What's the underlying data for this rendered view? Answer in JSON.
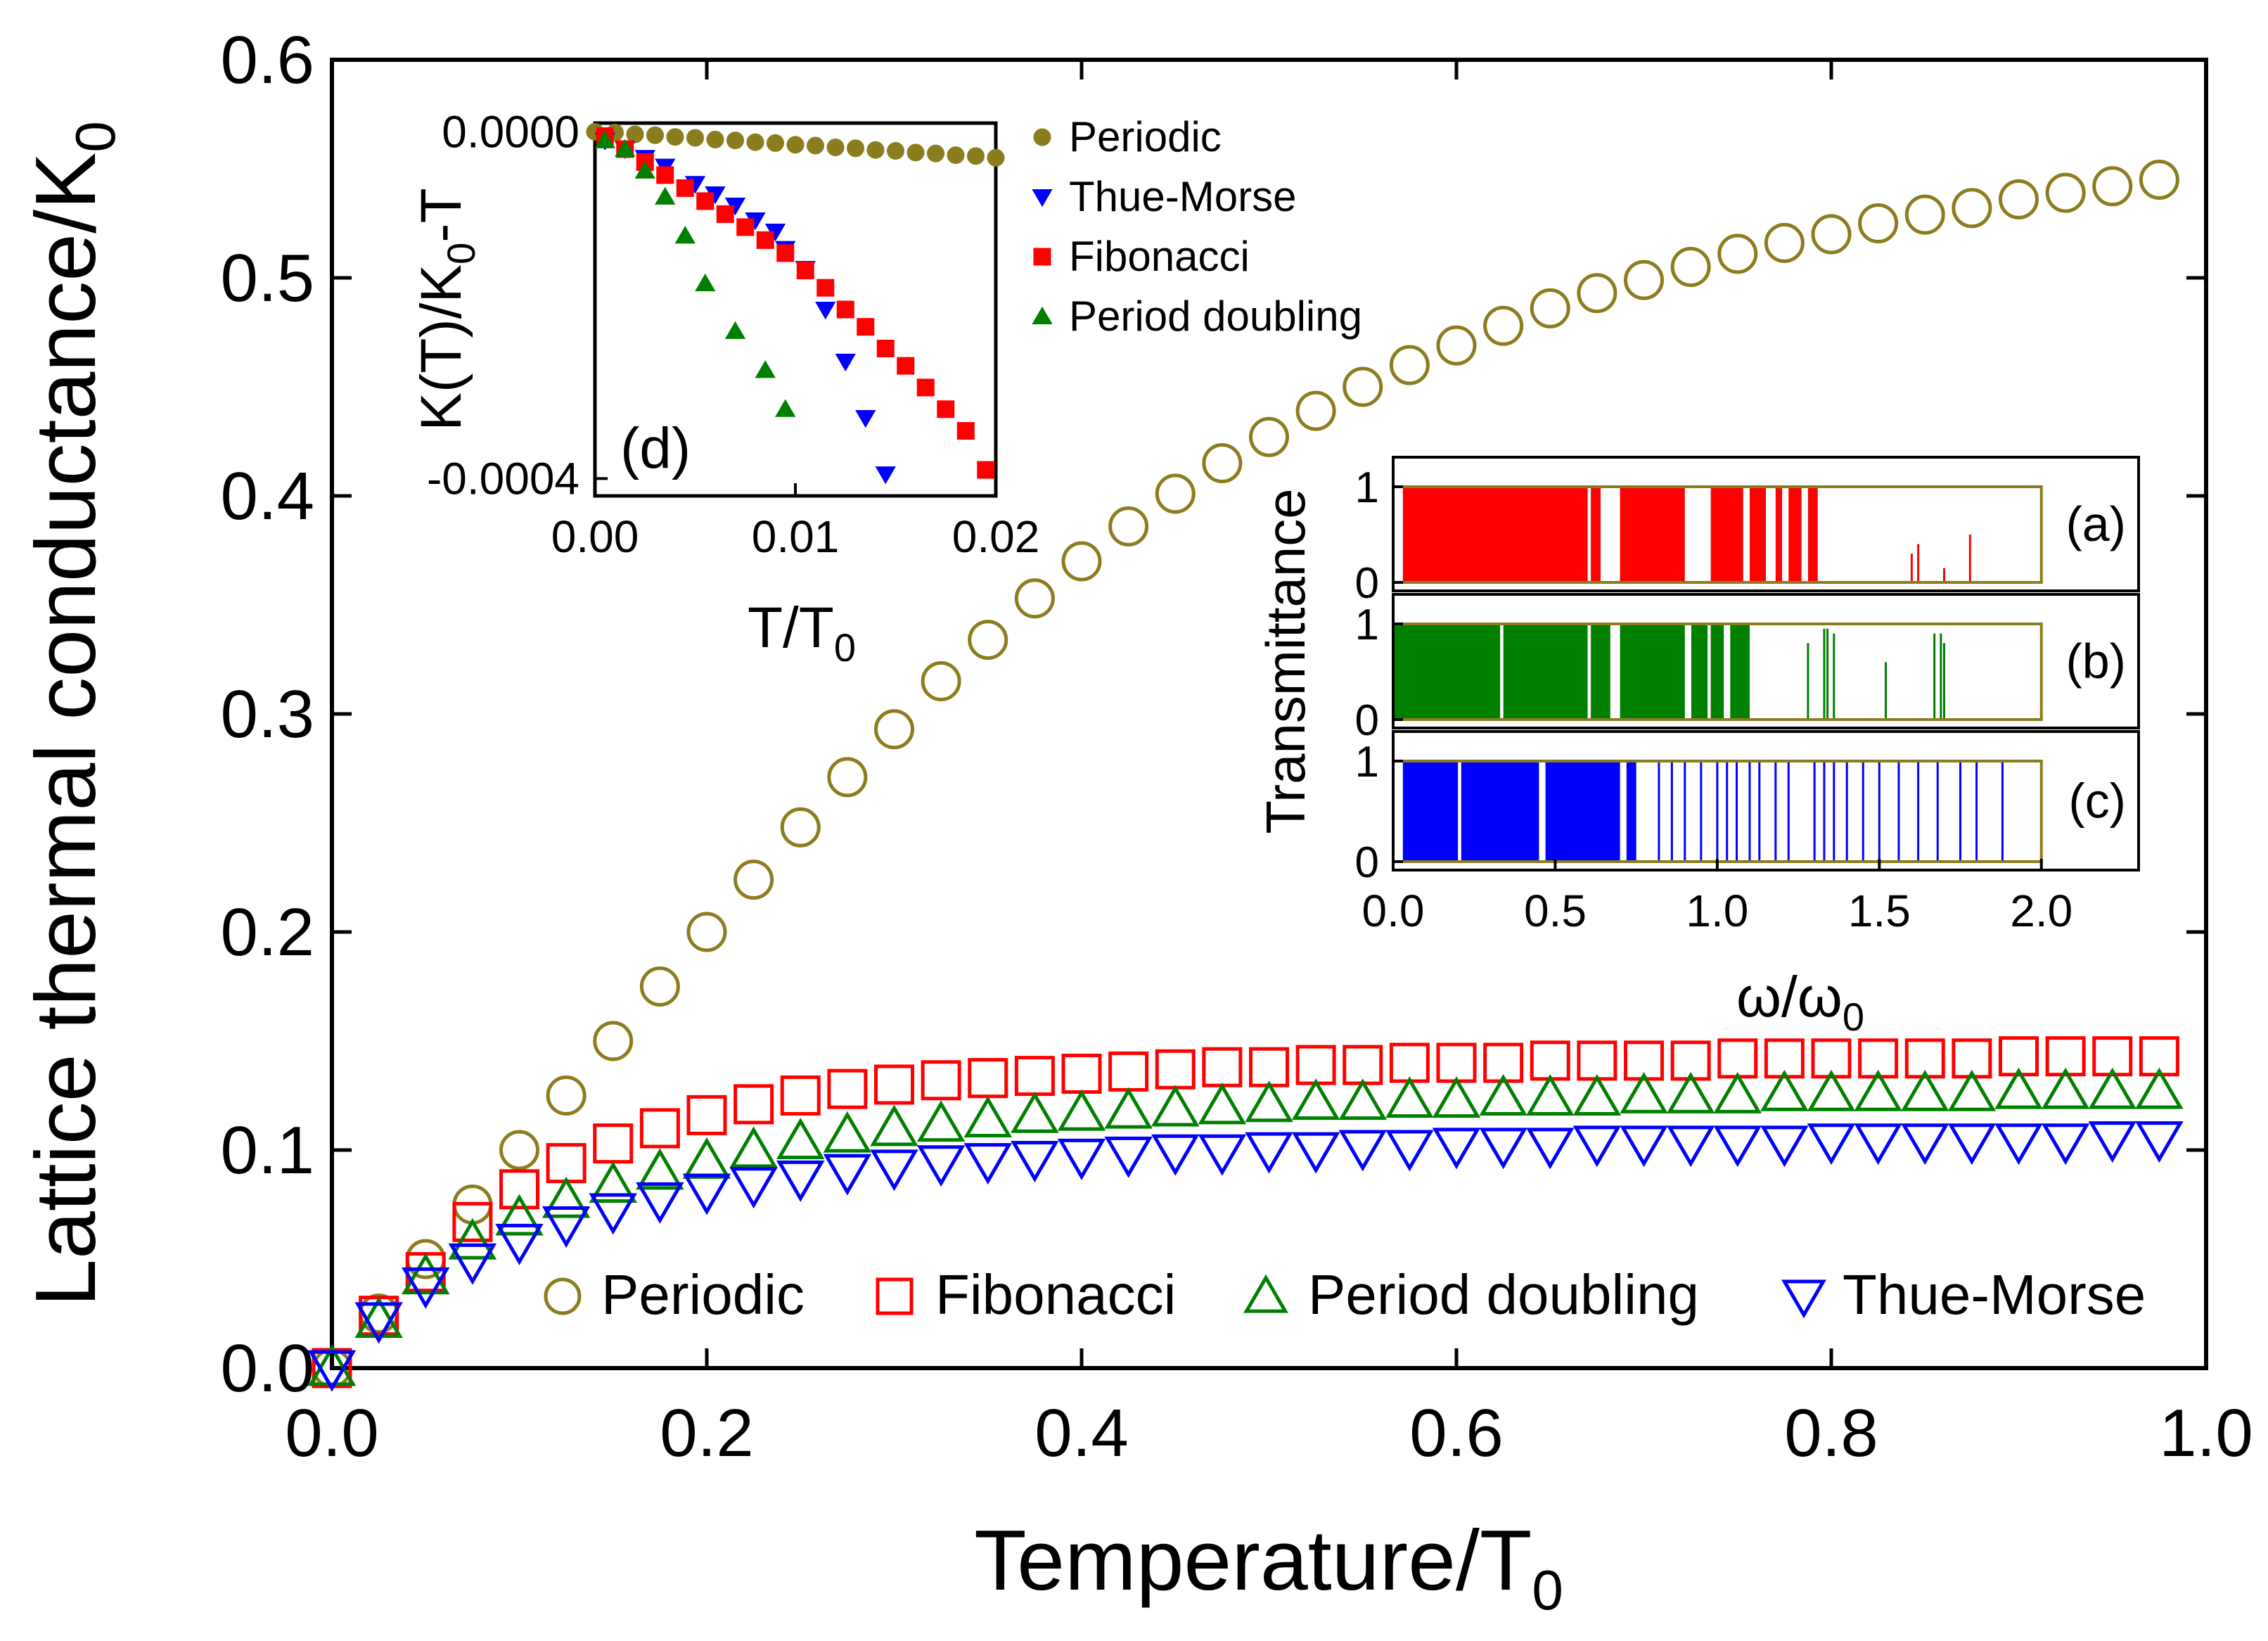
{
  "colors": {
    "periodic": "#8B7D1E",
    "fibonacci": "#FF0000",
    "period_doubling": "#008000",
    "thue_morse": "#0000FF",
    "axis": "#000000"
  },
  "chart_data": [
    {
      "id": "main",
      "type": "scatter",
      "xlabel": "Temperature/T",
      "xlabel_sub": "0",
      "ylabel": "Lattice thermal conductance/K",
      "ylabel_sub": "0",
      "xlim": [
        0,
        1.0
      ],
      "ylim": [
        0,
        0.6
      ],
      "xticks": [
        "0.0",
        "0.2",
        "0.4",
        "0.6",
        "0.8",
        "1.0"
      ],
      "xtick_values": [
        0,
        0.2,
        0.4,
        0.6,
        0.8,
        1.0
      ],
      "yticks": [
        "0.0",
        "0.1",
        "0.2",
        "0.3",
        "0.4",
        "0.5",
        "0.6"
      ],
      "ytick_values": [
        0,
        0.1,
        0.2,
        0.3,
        0.4,
        0.5,
        0.6
      ],
      "legend": [
        "Periodic",
        "Fibonacci",
        "Period doubling",
        "Thue-Morse"
      ],
      "legend_position": "bottom",
      "x": [
        0,
        0.025,
        0.05,
        0.075,
        0.1,
        0.125,
        0.15,
        0.175,
        0.2,
        0.225,
        0.25,
        0.275,
        0.3,
        0.325,
        0.35,
        0.375,
        0.4,
        0.425,
        0.45,
        0.475,
        0.5,
        0.525,
        0.55,
        0.575,
        0.6,
        0.625,
        0.65,
        0.675,
        0.7,
        0.725,
        0.75,
        0.775,
        0.8,
        0.825,
        0.85,
        0.875,
        0.9,
        0.925,
        0.95,
        0.975
      ],
      "series": [
        {
          "name": "Periodic",
          "marker": "circle-open",
          "color_key": "periodic",
          "values": [
            0,
            0.025,
            0.05,
            0.075,
            0.1,
            0.125,
            0.15,
            0.175,
            0.2,
            0.224,
            0.248,
            0.271,
            0.293,
            0.315,
            0.334,
            0.353,
            0.37,
            0.386,
            0.401,
            0.415,
            0.427,
            0.439,
            0.45,
            0.46,
            0.469,
            0.478,
            0.486,
            0.493,
            0.499,
            0.505,
            0.511,
            0.516,
            0.52,
            0.525,
            0.529,
            0.532,
            0.536,
            0.539,
            0.542,
            0.545
          ]
        },
        {
          "name": "Fibonacci",
          "marker": "square-open",
          "color_key": "fibonacci",
          "values": [
            0,
            0.024,
            0.044,
            0.067,
            0.082,
            0.094,
            0.103,
            0.11,
            0.116,
            0.121,
            0.125,
            0.128,
            0.13,
            0.132,
            0.133,
            0.134,
            0.135,
            0.136,
            0.137,
            0.138,
            0.138,
            0.139,
            0.139,
            0.14,
            0.14,
            0.14,
            0.141,
            0.141,
            0.141,
            0.141,
            0.142,
            0.142,
            0.142,
            0.142,
            0.142,
            0.142,
            0.143,
            0.143,
            0.143,
            0.143
          ]
        },
        {
          "name": "Period doubling",
          "marker": "triangle-up-open",
          "color_key": "period_doubling",
          "values": [
            0,
            0.022,
            0.042,
            0.058,
            0.069,
            0.077,
            0.084,
            0.09,
            0.095,
            0.1,
            0.104,
            0.107,
            0.11,
            0.112,
            0.114,
            0.116,
            0.117,
            0.118,
            0.119,
            0.12,
            0.121,
            0.122,
            0.122,
            0.123,
            0.123,
            0.124,
            0.124,
            0.124,
            0.125,
            0.125,
            0.125,
            0.126,
            0.126,
            0.126,
            0.126,
            0.126,
            0.127,
            0.127,
            0.127,
            0.127
          ]
        },
        {
          "name": "Thue-Morse",
          "marker": "triangle-down-open",
          "color_key": "thue_morse",
          "values": [
            0,
            0.022,
            0.038,
            0.049,
            0.058,
            0.066,
            0.072,
            0.077,
            0.081,
            0.084,
            0.087,
            0.09,
            0.092,
            0.094,
            0.095,
            0.096,
            0.097,
            0.098,
            0.099,
            0.099,
            0.1,
            0.1,
            0.101,
            0.101,
            0.102,
            0.102,
            0.102,
            0.103,
            0.103,
            0.103,
            0.103,
            0.103,
            0.104,
            0.104,
            0.104,
            0.104,
            0.104,
            0.104,
            0.105,
            0.105
          ]
        }
      ]
    },
    {
      "id": "inset_d",
      "type": "scatter",
      "panel_label": "(d)",
      "xlabel": "T/T",
      "xlabel_sub": "0",
      "ylabel_parts": [
        "K(T)/K",
        "0",
        "-T"
      ],
      "xlim": [
        0,
        0.02
      ],
      "ylim": [
        -0.00042,
        1e-05
      ],
      "xticks": [
        "0.00",
        "0.01",
        "0.02"
      ],
      "xtick_values": [
        0,
        0.01,
        0.02
      ],
      "yticks": [
        "0.0000",
        "-0.0004"
      ],
      "ytick_values": [
        0,
        -0.0004
      ],
      "legend": [
        "Periodic",
        "Thue-Morse",
        "Fibonacci",
        "Period doubling"
      ],
      "legend_position": "right",
      "series": [
        {
          "name": "Periodic",
          "marker": "circle",
          "color_key": "periodic",
          "x": [
            0,
            0.001,
            0.002,
            0.003,
            0.004,
            0.005,
            0.006,
            0.007,
            0.008,
            0.009,
            0.01,
            0.011,
            0.012,
            0.013,
            0.014,
            0.015,
            0.016,
            0.017,
            0.018,
            0.019,
            0.02
          ],
          "values": [
            0,
            -1e-06,
            -3e-06,
            -4e-06,
            -6e-06,
            -7e-06,
            -9e-06,
            -1e-05,
            -1.2e-05,
            -1.3e-05,
            -1.5e-05,
            -1.6e-05,
            -1.8e-05,
            -1.9e-05,
            -2.1e-05,
            -2.2e-05,
            -2.4e-05,
            -2.5e-05,
            -2.7e-05,
            -2.8e-05,
            -3e-05
          ]
        },
        {
          "name": "Thue-Morse",
          "marker": "triangle-down",
          "color_key": "thue_morse",
          "x": [
            0.0005,
            0.0015,
            0.0025,
            0.0035,
            0.005,
            0.006,
            0.007,
            0.008,
            0.009,
            0.0095,
            0.0105,
            0.0115,
            0.0125,
            0.0135,
            0.0145
          ],
          "values": [
            -1e-05,
            -2e-05,
            -3e-05,
            -4e-05,
            -6e-05,
            -7.2e-05,
            -8.5e-05,
            -0.000102,
            -0.000115,
            -0.000135,
            -0.000158,
            -0.000205,
            -0.000265,
            -0.00033,
            -0.000395
          ]
        },
        {
          "name": "Fibonacci",
          "marker": "square",
          "color_key": "fibonacci",
          "x": [
            0.0005,
            0.0015,
            0.0025,
            0.0035,
            0.0045,
            0.0055,
            0.0065,
            0.0075,
            0.0085,
            0.0095,
            0.0105,
            0.0115,
            0.0125,
            0.0135,
            0.0145,
            0.0155,
            0.0165,
            0.0175,
            0.0185,
            0.0195
          ],
          "values": [
            -5e-06,
            -2e-05,
            -3.5e-05,
            -5e-05,
            -6.5e-05,
            -8e-05,
            -9.5e-05,
            -0.00011,
            -0.000125,
            -0.00014,
            -0.00016,
            -0.00018,
            -0.000205,
            -0.000225,
            -0.00025,
            -0.00027,
            -0.000295,
            -0.00032,
            -0.000345,
            -0.00039
          ]
        },
        {
          "name": "Period doubling",
          "marker": "triangle-up",
          "color_key": "period_doubling",
          "x": [
            0.0005,
            0.0015,
            0.0025,
            0.0035,
            0.0045,
            0.0055,
            0.007,
            0.0085,
            0.0095
          ],
          "values": [
            -1e-05,
            -2e-05,
            -4.5e-05,
            -7.5e-05,
            -0.00012,
            -0.000175,
            -0.00023,
            -0.000275,
            -0.00032
          ]
        }
      ]
    },
    {
      "id": "inset_abc",
      "type": "bar",
      "ylabel": "Transmittance",
      "xlabel": "ω/ω",
      "xlabel_sub": "0",
      "xlim": [
        0,
        2.3
      ],
      "xticks": [
        "0.0",
        "0.5",
        "1.0",
        "1.5",
        "2.0"
      ],
      "xtick_values": [
        0,
        0.5,
        1.0,
        1.5,
        2.0
      ],
      "yticks": [
        "0",
        "1"
      ],
      "ytick_values": [
        0,
        1
      ],
      "envelope": {
        "description": "periodic transmittance envelope",
        "x_end": 2.0,
        "value": 1,
        "color_key": "periodic"
      },
      "panels": [
        {
          "label": "(a)",
          "name": "Fibonacci",
          "color_key": "fibonacci",
          "bands": [
            [
              0.03,
              0.6
            ],
            [
              0.61,
              0.64
            ],
            [
              0.7,
              0.9
            ],
            [
              0.98,
              1.08
            ],
            [
              1.1,
              1.15
            ],
            [
              1.18,
              1.2
            ],
            [
              1.22,
              1.26
            ],
            [
              1.28,
              1.31
            ]
          ],
          "lines": [
            [
              1.6,
              0.3
            ],
            [
              1.62,
              0.4
            ],
            [
              1.7,
              0.15
            ],
            [
              1.78,
              0.5
            ]
          ]
        },
        {
          "label": "(b)",
          "name": "Period doubling",
          "color_key": "period_doubling",
          "bands": [
            [
              0.0,
              0.33
            ],
            [
              0.34,
              0.6
            ],
            [
              0.61,
              0.67
            ],
            [
              0.7,
              0.9
            ],
            [
              0.92,
              0.97
            ],
            [
              0.98,
              1.02
            ],
            [
              1.04,
              1.1
            ]
          ],
          "lines": [
            [
              1.28,
              0.8
            ],
            [
              1.33,
              0.95
            ],
            [
              1.34,
              0.95
            ],
            [
              1.36,
              0.9
            ],
            [
              1.52,
              0.6
            ],
            [
              1.67,
              0.9
            ],
            [
              1.69,
              0.9
            ],
            [
              1.7,
              0.8
            ]
          ]
        },
        {
          "label": "(c)",
          "name": "Thue-Morse",
          "color_key": "thue_morse",
          "bands": [
            [
              0.03,
              0.2
            ],
            [
              0.21,
              0.45
            ],
            [
              0.47,
              0.7
            ],
            [
              0.72,
              0.75
            ]
          ],
          "lines": [
            [
              0.82,
              1
            ],
            [
              0.86,
              1
            ],
            [
              0.9,
              1
            ],
            [
              0.95,
              1
            ],
            [
              1.0,
              1
            ],
            [
              1.03,
              1
            ],
            [
              1.06,
              1
            ],
            [
              1.1,
              1
            ],
            [
              1.13,
              1
            ],
            [
              1.18,
              1
            ],
            [
              1.22,
              1
            ],
            [
              1.3,
              1
            ],
            [
              1.33,
              1
            ],
            [
              1.36,
              1
            ],
            [
              1.4,
              1
            ],
            [
              1.45,
              1
            ],
            [
              1.5,
              1
            ],
            [
              1.56,
              1
            ],
            [
              1.62,
              1
            ],
            [
              1.68,
              1
            ],
            [
              1.75,
              1
            ],
            [
              1.8,
              1
            ],
            [
              1.88,
              1
            ]
          ]
        }
      ]
    }
  ]
}
